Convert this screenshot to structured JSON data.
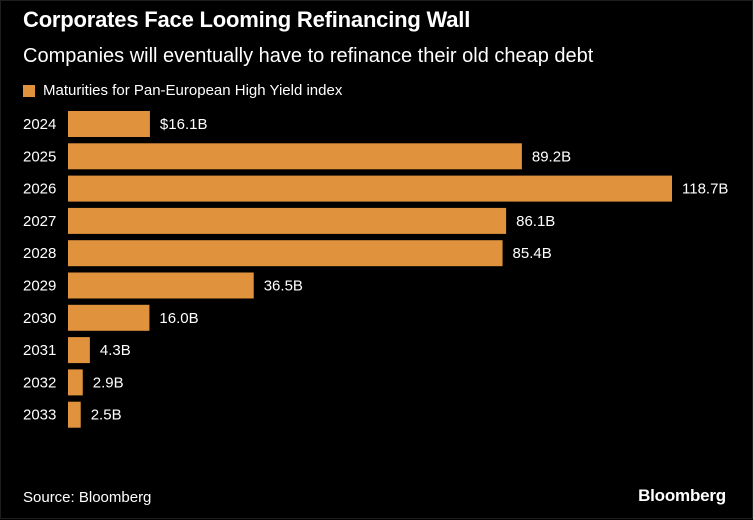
{
  "title": "Corporates Face Looming Refinancing Wall",
  "subtitle": "Companies will eventually have to refinance their old cheap debt",
  "source": "Source: Bloomberg",
  "brand": "Bloomberg",
  "colors": {
    "bar": "#e1923d",
    "background": "#000000",
    "text": "#ffffff"
  },
  "chart_data": {
    "type": "bar",
    "orientation": "horizontal",
    "categories": [
      "2024",
      "2025",
      "2026",
      "2027",
      "2028",
      "2029",
      "2030",
      "2031",
      "2032",
      "2033"
    ],
    "series": [
      {
        "name": "Maturities for Pan-European High Yield index",
        "values": [
          16.1,
          89.2,
          118.7,
          86.1,
          85.4,
          36.5,
          16.0,
          4.3,
          2.9,
          2.5
        ]
      }
    ],
    "data_labels": [
      "$16.1B",
      "89.2B",
      "118.7B",
      "86.1B",
      "85.4B",
      "36.5B",
      "16.0B",
      "4.3B",
      "2.9B",
      "2.5B"
    ],
    "legend": "top-left",
    "grid": false
  }
}
